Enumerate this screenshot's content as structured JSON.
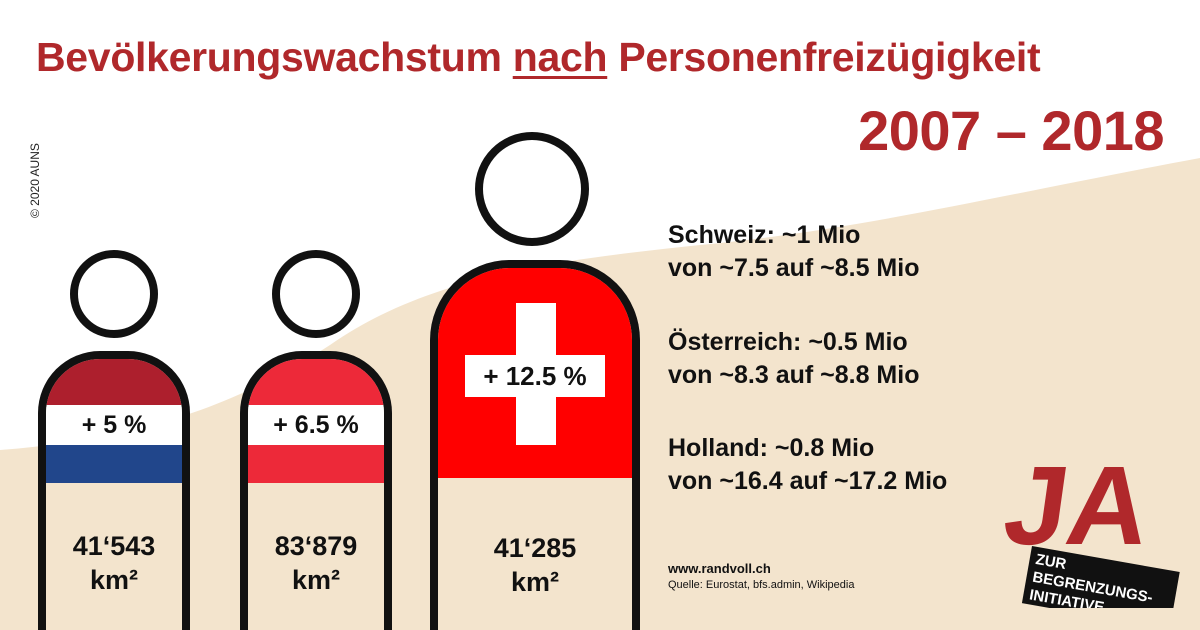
{
  "title": {
    "before": "Bevölkerungswachstum ",
    "emph": "nach",
    "after": " Personenfreizügigkeit",
    "years": "2007 – 2018"
  },
  "copyright": "© 2020 AUNS",
  "figures": [
    {
      "country": "Holland",
      "percent": "+ 5 %",
      "area_value": "41‘543",
      "area_unit": "km²",
      "colors": {
        "top": "#ad1f2d",
        "bottom": "#21468b"
      }
    },
    {
      "country": "Österreich",
      "percent": "+ 6.5 %",
      "area_value": "83‘879",
      "area_unit": "km²",
      "colors": {
        "top": "#ed2939",
        "bottom": "#ed2939"
      }
    },
    {
      "country": "Schweiz",
      "percent": "+ 12.5 %",
      "area_value": "41‘285",
      "area_unit": "km²",
      "colors": {
        "top": "#ff0000",
        "cross": "#ffffff"
      }
    }
  ],
  "info": [
    {
      "line1": "Schweiz: ~1 Mio",
      "line2": "von ~7.5 auf ~8.5 Mio"
    },
    {
      "line1": "Österreich: ~0.5 Mio",
      "line2": "von ~8.3 auf ~8.8 Mio"
    },
    {
      "line1": "Holland: ~0.8 Mio",
      "line2": "von ~16.4 auf ~17.2 Mio"
    }
  ],
  "website": "www.randvoll.ch",
  "source": "Quelle: Eurostat, bfs.admin, Wikipedia",
  "logo": {
    "big": "JA",
    "line1": "ZUR",
    "line2": "BEGRENZUNGS-",
    "line3": "INITIATIVE"
  },
  "colors": {
    "accent": "#b0282b",
    "beige": "#f3e4cd",
    "ink": "#111111"
  }
}
